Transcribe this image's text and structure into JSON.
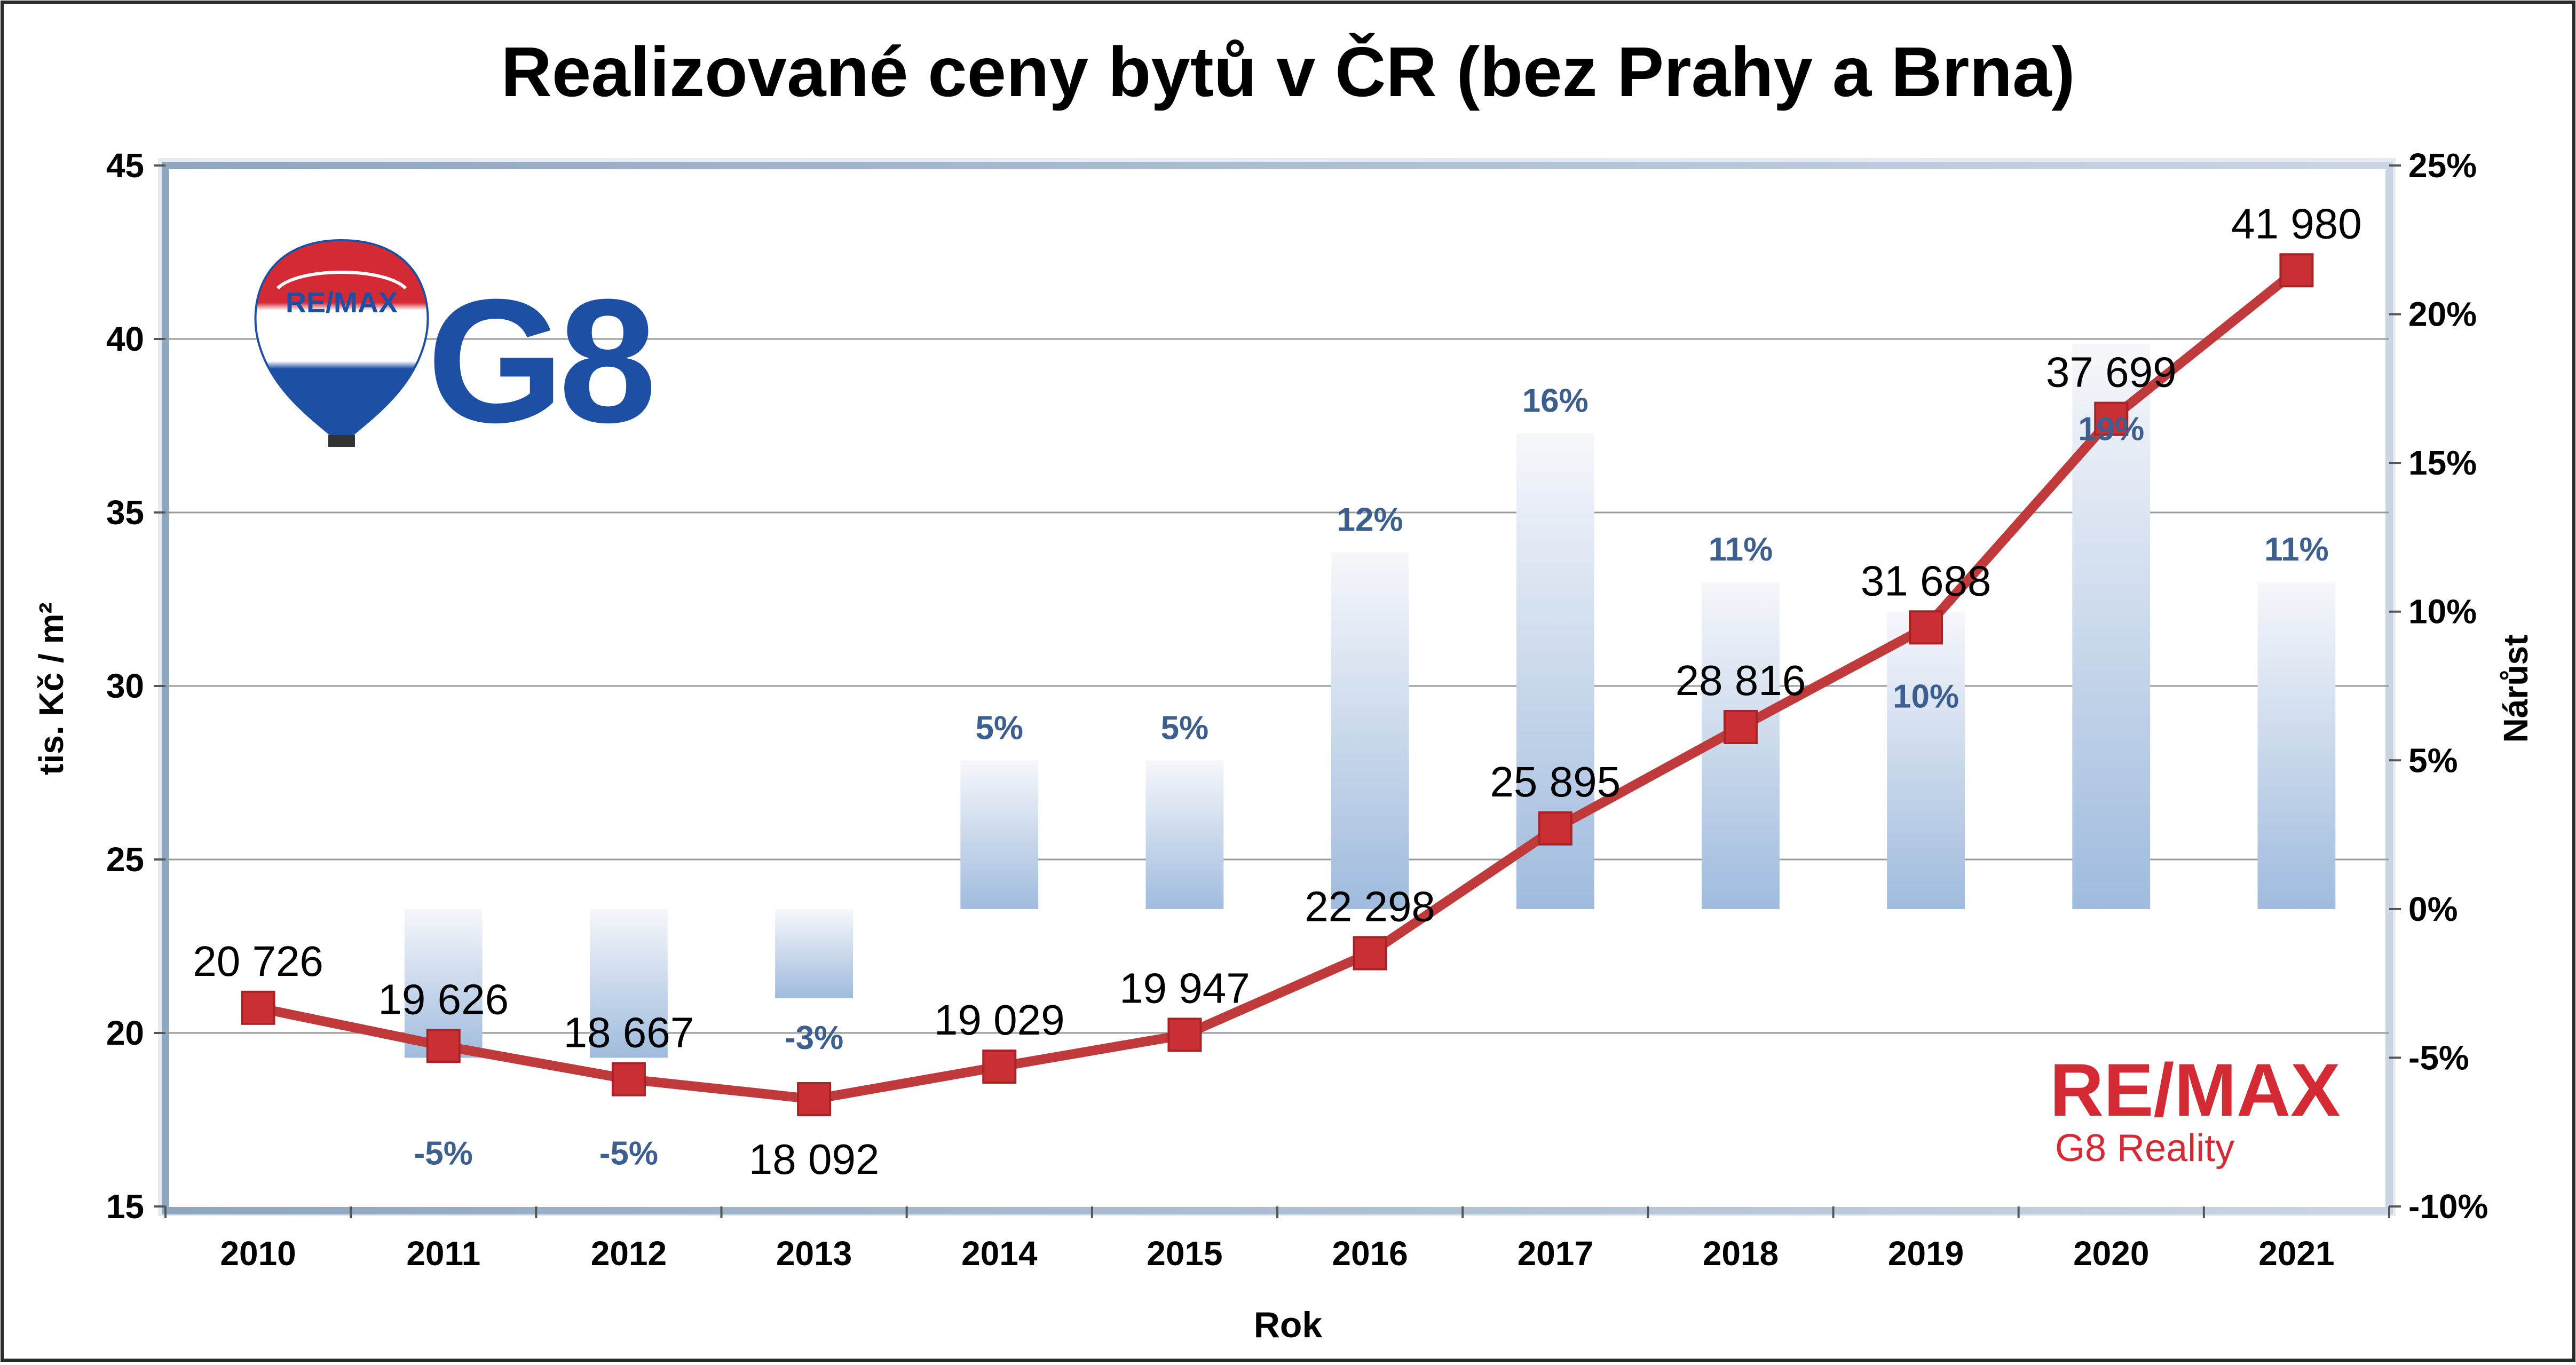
{
  "chart_data": {
    "type": "line",
    "title": "Realizované ceny bytů v ČR (bez Prahy a Brna)",
    "xlabel": "Rok",
    "ylabel": "tis. Kč / m²",
    "y2label": "Nárůst",
    "categories": [
      "2010",
      "2011",
      "2012",
      "2013",
      "2014",
      "2015",
      "2016",
      "2017",
      "2018",
      "2019",
      "2020",
      "2021"
    ],
    "ylim": [
      15,
      45
    ],
    "y_ticks": [
      15,
      20,
      25,
      30,
      35,
      40,
      45
    ],
    "y2lim": [
      -10,
      25
    ],
    "y2_ticks": [
      "-10%",
      "-5%",
      "0%",
      "5%",
      "10%",
      "15%",
      "20%",
      "25%"
    ],
    "grid": true,
    "series": [
      {
        "kind": "line",
        "axis": "left",
        "color": "#c0393b",
        "values": [
          20.726,
          19.626,
          18.667,
          18.092,
          19.029,
          19.947,
          22.298,
          25.895,
          28.816,
          31.688,
          37.699,
          41.98
        ],
        "labels": [
          "20 726",
          "19 626",
          "18 667",
          "18 092",
          "19 029",
          "19 947",
          "22 298",
          "25 895",
          "28 816",
          "31 688",
          "37 699",
          "41 980"
        ]
      },
      {
        "kind": "bar",
        "axis": "right",
        "color": "#9bb7d9",
        "values": [
          null,
          -5,
          -5,
          -3,
          5,
          5,
          12,
          16,
          11,
          10,
          19,
          11
        ],
        "labels": [
          "",
          "-5%",
          "-5%",
          "-3%",
          "5%",
          "5%",
          "12%",
          "16%",
          "11%",
          "10%",
          "19%",
          "11%"
        ]
      }
    ]
  },
  "logos": {
    "balloon_text": "RE/MAX",
    "g8_text": "G8",
    "remax_text": "RE/MAX",
    "remax_subtext": "G8 Reality",
    "remax_red": "#d42a34",
    "remax_blue": "#1d4fa5"
  }
}
